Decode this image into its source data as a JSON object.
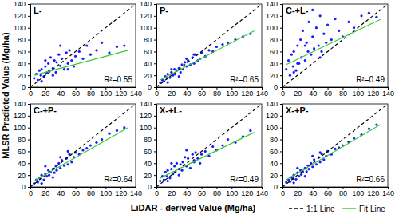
{
  "chart_data": [
    {
      "type": "scatter",
      "title": "L-",
      "annotation": "R²=0.55",
      "y_label": "MLSR Predicted Value (Mg/ha)",
      "xlim": [
        0,
        140
      ],
      "ylim": [
        0,
        140
      ],
      "xticks": [
        0,
        20,
        40,
        60,
        80,
        100,
        120,
        140
      ],
      "yticks": [
        0,
        20,
        40,
        60,
        80,
        100,
        120,
        140
      ],
      "x": [
        5,
        8,
        10,
        12,
        14,
        15,
        18,
        20,
        22,
        24,
        25,
        27,
        30,
        32,
        34,
        35,
        38,
        40,
        42,
        45,
        48,
        50,
        52,
        55,
        58,
        60,
        65,
        70,
        75,
        80,
        88,
        95,
        105,
        115,
        125,
        20,
        30,
        15,
        40,
        50
      ],
      "series": [
        {
          "type": "scatter",
          "marker": "circle",
          "color": "#1a1aff",
          "values": [
            15,
            22,
            12,
            28,
            20,
            30,
            18,
            35,
            24,
            40,
            28,
            50,
            32,
            45,
            25,
            42,
            55,
            36,
            48,
            30,
            58,
            40,
            62,
            45,
            35,
            52,
            60,
            48,
            70,
            55,
            62,
            75,
            58,
            68,
            70,
            45,
            20,
            10,
            70,
            30
          ]
        },
        {
          "type": "line",
          "line_style": "dashed",
          "color": "#000000",
          "x": [
            0,
            140
          ],
          "values": [
            0,
            140
          ]
        },
        {
          "type": "line",
          "line_style": "solid",
          "color": "#33cc33",
          "x": [
            5,
            130
          ],
          "values": [
            20,
            62
          ]
        }
      ]
    },
    {
      "type": "scatter",
      "title": "P-",
      "annotation": "R²=0.65",
      "xlim": [
        0,
        140
      ],
      "ylim": [
        0,
        140
      ],
      "xticks": [
        0,
        20,
        40,
        60,
        80,
        100,
        120,
        140
      ],
      "yticks": [
        0,
        20,
        40,
        60,
        80,
        100,
        120,
        140
      ],
      "x": [
        5,
        8,
        10,
        12,
        14,
        15,
        18,
        20,
        22,
        24,
        25,
        27,
        30,
        32,
        34,
        35,
        38,
        40,
        42,
        45,
        48,
        50,
        52,
        55,
        58,
        60,
        65,
        70,
        75,
        80,
        88,
        95,
        105,
        115,
        125,
        20,
        30,
        15,
        40,
        50
      ],
      "series": [
        {
          "type": "scatter",
          "marker": "circle",
          "color": "#1a1aff",
          "values": [
            8,
            12,
            10,
            18,
            15,
            22,
            16,
            25,
            20,
            30,
            22,
            28,
            32,
            25,
            38,
            30,
            42,
            35,
            45,
            38,
            50,
            40,
            55,
            45,
            48,
            58,
            52,
            62,
            60,
            68,
            72,
            75,
            80,
            85,
            90,
            30,
            18,
            8,
            48,
            55
          ]
        },
        {
          "type": "line",
          "line_style": "dashed",
          "color": "#000000",
          "x": [
            0,
            140
          ],
          "values": [
            0,
            140
          ]
        },
        {
          "type": "line",
          "line_style": "solid",
          "color": "#33cc33",
          "x": [
            5,
            130
          ],
          "values": [
            12,
            95
          ]
        }
      ]
    },
    {
      "type": "scatter",
      "title": "C-+L-",
      "annotation": "R²=0.49",
      "xlim": [
        0,
        140
      ],
      "ylim": [
        0,
        140
      ],
      "xticks": [
        0,
        20,
        40,
        60,
        80,
        100,
        120,
        140
      ],
      "yticks": [
        0,
        20,
        40,
        60,
        80,
        100,
        120,
        140
      ],
      "x": [
        5,
        8,
        10,
        12,
        14,
        15,
        18,
        20,
        22,
        24,
        25,
        27,
        30,
        32,
        34,
        35,
        38,
        40,
        42,
        45,
        48,
        50,
        52,
        55,
        58,
        60,
        65,
        70,
        75,
        80,
        88,
        95,
        105,
        115,
        125,
        20,
        30,
        15,
        40,
        50
      ],
      "series": [
        {
          "type": "scatter",
          "marker": "circle",
          "color": "#1a1aff",
          "values": [
            30,
            45,
            20,
            55,
            35,
            60,
            28,
            70,
            40,
            80,
            50,
            95,
            45,
            75,
            60,
            110,
            55,
            85,
            65,
            100,
            70,
            120,
            60,
            90,
            75,
            105,
            80,
            115,
            95,
            85,
            110,
            100,
            120,
            125,
            118,
            40,
            70,
            25,
            130,
            50
          ]
        },
        {
          "type": "line",
          "line_style": "dashed",
          "color": "#000000",
          "x": [
            0,
            140
          ],
          "values": [
            0,
            140
          ]
        },
        {
          "type": "line",
          "line_style": "solid",
          "color": "#33cc33",
          "x": [
            5,
            130
          ],
          "values": [
            38,
            114
          ]
        }
      ]
    },
    {
      "type": "scatter",
      "title": "C-+P-",
      "annotation": "R²=0.64",
      "xlim": [
        0,
        140
      ],
      "ylim": [
        0,
        140
      ],
      "xticks": [
        0,
        20,
        40,
        60,
        80,
        100,
        120,
        140
      ],
      "yticks": [
        0,
        20,
        40,
        60,
        80,
        100,
        120,
        140
      ],
      "x": [
        5,
        8,
        10,
        12,
        14,
        15,
        18,
        20,
        22,
        24,
        25,
        27,
        30,
        32,
        34,
        35,
        38,
        40,
        42,
        45,
        48,
        50,
        52,
        55,
        58,
        60,
        65,
        70,
        75,
        80,
        88,
        95,
        105,
        115,
        125,
        20,
        30,
        15,
        40,
        50
      ],
      "series": [
        {
          "type": "scatter",
          "marker": "circle",
          "color": "#1a1aff",
          "values": [
            6,
            12,
            8,
            15,
            14,
            20,
            12,
            22,
            18,
            28,
            20,
            25,
            30,
            24,
            35,
            28,
            40,
            32,
            45,
            36,
            48,
            38,
            55,
            42,
            50,
            58,
            55,
            62,
            65,
            70,
            75,
            80,
            90,
            95,
            100,
            35,
            16,
            6,
            50,
            60
          ]
        },
        {
          "type": "line",
          "line_style": "dashed",
          "color": "#000000",
          "x": [
            0,
            140
          ],
          "values": [
            0,
            140
          ]
        },
        {
          "type": "line",
          "line_style": "solid",
          "color": "#33cc33",
          "x": [
            5,
            130
          ],
          "values": [
            10,
            100
          ]
        }
      ]
    },
    {
      "type": "scatter",
      "title": "X-+L-",
      "annotation": "R²=0.49",
      "x_label": "LiDAR - derived Value (Mg/ha)",
      "xlim": [
        0,
        140
      ],
      "ylim": [
        0,
        140
      ],
      "xticks": [
        0,
        20,
        40,
        60,
        80,
        100,
        120,
        140
      ],
      "yticks": [
        0,
        20,
        40,
        60,
        80,
        100,
        120,
        140
      ],
      "x": [
        5,
        8,
        10,
        12,
        14,
        15,
        18,
        20,
        22,
        24,
        25,
        27,
        30,
        32,
        34,
        35,
        38,
        40,
        42,
        45,
        48,
        50,
        52,
        55,
        58,
        60,
        65,
        70,
        75,
        80,
        88,
        95,
        105,
        115,
        125,
        20,
        30,
        15,
        40,
        50
      ],
      "series": [
        {
          "type": "scatter",
          "marker": "circle",
          "color": "#1a1aff",
          "values": [
            10,
            18,
            12,
            25,
            18,
            28,
            15,
            30,
            22,
            35,
            25,
            40,
            30,
            38,
            28,
            42,
            50,
            35,
            48,
            32,
            55,
            42,
            58,
            48,
            40,
            55,
            60,
            52,
            68,
            62,
            70,
            80,
            75,
            85,
            95,
            40,
            20,
            10,
            62,
            45
          ]
        },
        {
          "type": "line",
          "line_style": "dashed",
          "color": "#000000",
          "x": [
            0,
            140
          ],
          "values": [
            0,
            140
          ]
        },
        {
          "type": "line",
          "line_style": "solid",
          "color": "#33cc33",
          "x": [
            5,
            130
          ],
          "values": [
            15,
            92
          ]
        }
      ]
    },
    {
      "type": "scatter",
      "title": "X-+P-",
      "annotation": "R²=0.66",
      "xlim": [
        0,
        140
      ],
      "ylim": [
        0,
        140
      ],
      "xticks": [
        0,
        20,
        40,
        60,
        80,
        100,
        120,
        140
      ],
      "yticks": [
        0,
        20,
        40,
        60,
        80,
        100,
        120,
        140
      ],
      "x": [
        5,
        8,
        10,
        12,
        14,
        15,
        18,
        20,
        22,
        24,
        25,
        27,
        30,
        32,
        34,
        35,
        38,
        40,
        42,
        45,
        48,
        50,
        52,
        55,
        58,
        60,
        65,
        70,
        75,
        80,
        88,
        95,
        105,
        115,
        125,
        20,
        30,
        15,
        40,
        50
      ],
      "series": [
        {
          "type": "scatter",
          "marker": "circle",
          "color": "#1a1aff",
          "values": [
            8,
            12,
            9,
            16,
            14,
            20,
            13,
            24,
            18,
            28,
            21,
            26,
            32,
            26,
            36,
            30,
            40,
            34,
            46,
            38,
            50,
            42,
            56,
            46,
            52,
            60,
            55,
            64,
            66,
            70,
            76,
            82,
            88,
            98,
            105,
            32,
            18,
            7,
            52,
            58
          ]
        },
        {
          "name": "1:1 Line",
          "type": "line",
          "line_style": "dashed",
          "color": "#000000",
          "x": [
            0,
            140
          ],
          "values": [
            0,
            140
          ]
        },
        {
          "name": "Fit Line",
          "type": "line",
          "line_style": "solid",
          "color": "#33cc33",
          "x": [
            5,
            130
          ],
          "values": [
            12,
            105
          ]
        }
      ]
    }
  ]
}
